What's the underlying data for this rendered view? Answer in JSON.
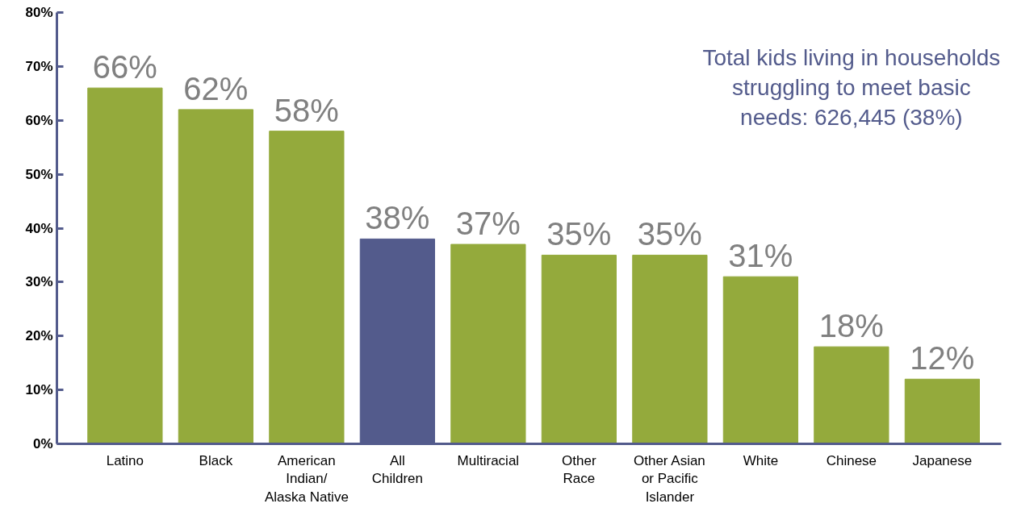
{
  "chart_data": {
    "type": "bar",
    "categories": [
      "Latino",
      "Black",
      "American\nIndian/\nAlaska Native",
      "All\nChildren",
      "Multiracial",
      "Other\nRace",
      "Other Asian\nor Pacific\nIslander",
      "White",
      "Chinese",
      "Japanese"
    ],
    "values": [
      66,
      62,
      58,
      38,
      37,
      35,
      35,
      31,
      18,
      12
    ],
    "colors": [
      "#94aa3c",
      "#94aa3c",
      "#94aa3c",
      "#535b8c",
      "#94aa3c",
      "#94aa3c",
      "#94aa3c",
      "#94aa3c",
      "#94aa3c",
      "#94aa3c"
    ],
    "value_labels": [
      "66%",
      "62%",
      "58%",
      "38%",
      "37%",
      "35%",
      "35%",
      "31%",
      "18%",
      "12%"
    ],
    "ylim": [
      0,
      80
    ],
    "yticks": [
      {
        "value": 0,
        "label": "0%"
      },
      {
        "value": 10,
        "label": "10%"
      },
      {
        "value": 20,
        "label": "20%"
      },
      {
        "value": 30,
        "label": "30%"
      },
      {
        "value": 40,
        "label": "40%"
      },
      {
        "value": 50,
        "label": "50%"
      },
      {
        "value": 60,
        "label": "60%"
      },
      {
        "value": 70,
        "label": "70%"
      },
      {
        "value": 80,
        "label": "80%"
      }
    ],
    "grid": false,
    "annotations": [
      "Total kids living in households\nstruggling to meet basic\nneeds: 626,445 (38%)"
    ]
  }
}
